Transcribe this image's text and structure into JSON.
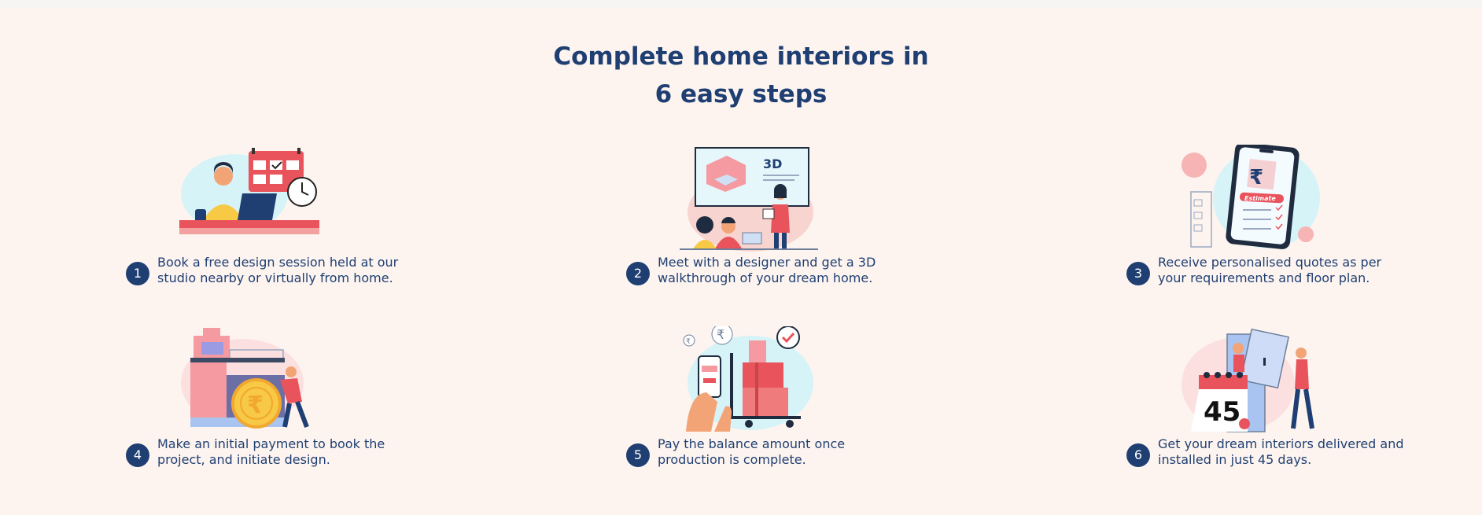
{
  "header": {
    "title_line1": "Complete home interiors in",
    "title_line2": "6 easy steps"
  },
  "colors": {
    "navy": "#1f3f73",
    "background": "#fdf4ef",
    "accent_red": "#e9535c",
    "light_blue": "#d6f3f8",
    "pink": "#f7c8c6"
  },
  "steps": [
    {
      "number": "1",
      "icon": "design-session-icon",
      "line1": "Book a free design session held at our",
      "line2": "studio nearby or virtually from home."
    },
    {
      "number": "2",
      "icon": "3d-walkthrough-icon",
      "screen_label": "3D",
      "line1": "Meet with a designer and get a 3D",
      "line2": "walkthrough of your dream home."
    },
    {
      "number": "3",
      "icon": "quote-estimate-icon",
      "phone_symbol": "₹",
      "phone_label": "Estimate",
      "line1": "Receive personalised quotes as per",
      "line2": "your requirements and floor plan."
    },
    {
      "number": "4",
      "icon": "initial-payment-icon",
      "coin_symbol": "₹",
      "line1": "Make an initial payment to book the",
      "line2": "project, and initiate design."
    },
    {
      "number": "5",
      "icon": "balance-payment-icon",
      "coin_symbol": "₹",
      "line1": "Pay the balance amount once",
      "line2": "production is complete."
    },
    {
      "number": "6",
      "icon": "delivery-installation-icon",
      "calendar_number": "45",
      "line1": "Get your dream interiors delivered and",
      "line2": "installed in just 45 days."
    }
  ]
}
